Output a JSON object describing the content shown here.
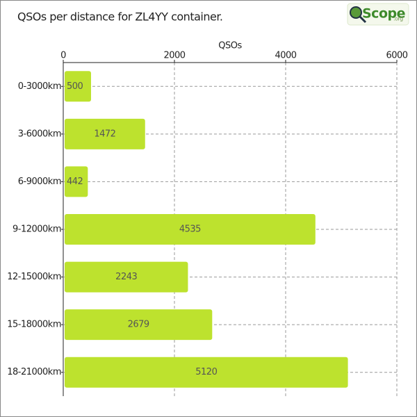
{
  "logo": {
    "text": "Scope",
    "suffix": ".org"
  },
  "chart_data": {
    "type": "hbar",
    "title": "QSOs per distance for ZL4YY container.",
    "x_label": "QSOs",
    "categories": [
      "0-3000km",
      "3-6000km",
      "6-9000km",
      "9-12000km",
      "12-15000km",
      "15-18000km",
      "18-21000km"
    ],
    "values": [
      500,
      1472,
      442,
      4535,
      2243,
      2679,
      5120
    ],
    "color": "#bde22e",
    "xlim": [
      0,
      6000
    ],
    "xticks": [
      0,
      2000,
      4000,
      6000
    ],
    "grid": true
  }
}
